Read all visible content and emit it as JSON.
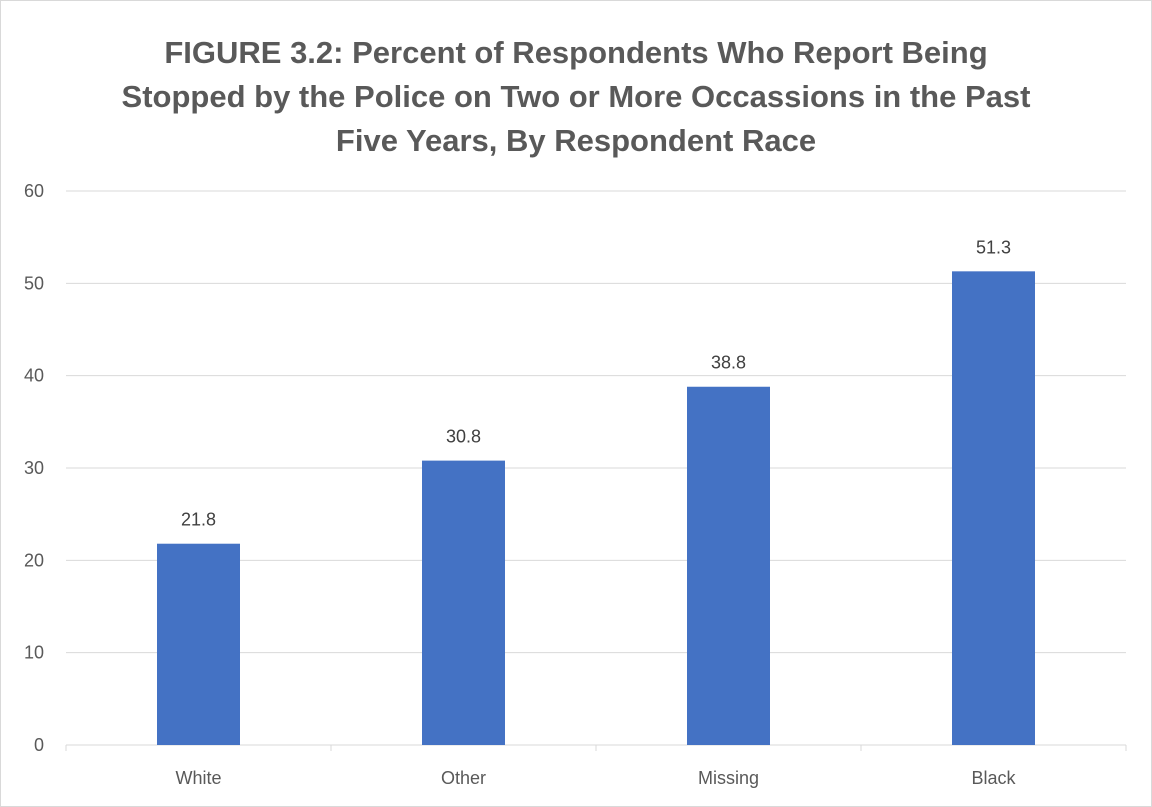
{
  "chart_data": {
    "type": "bar",
    "title": "FIGURE 3.2: Percent of Respondents Who Report Being Stopped by the Police on Two or More Occassions in the Past Five Years, By Respondent Race",
    "categories": [
      "White",
      "Other",
      "Missing",
      "Black"
    ],
    "values": [
      21.8,
      30.8,
      38.8,
      51.3
    ],
    "data_labels": [
      "21.8",
      "30.8",
      "38.8",
      "51.3"
    ],
    "ylim": [
      0,
      60
    ],
    "yticks": [
      0,
      10,
      20,
      30,
      40,
      50,
      60
    ],
    "xlabel": "",
    "ylabel": "",
    "grid": true,
    "legend": "none",
    "bar_color": "#4472c4",
    "grid_color": "#d9d9d9",
    "text_color": "#595959"
  }
}
